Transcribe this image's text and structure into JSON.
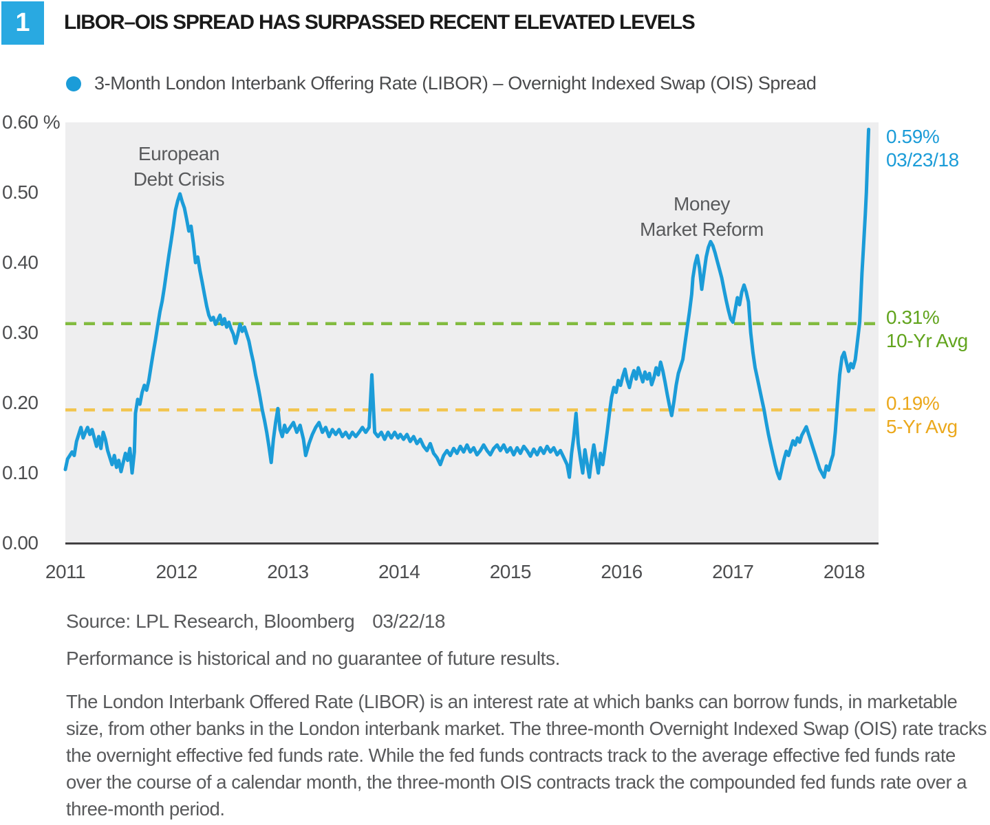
{
  "colors": {
    "blue": "#1B9CD8",
    "green-line": "#82BB3F",
    "green-text": "#61A41D",
    "yellow-line": "#F2C54E",
    "orange-text": "#EBA81C",
    "ink": "#1A1A1A",
    "gray-text": "#58595B",
    "tick-text": "#4D4E50",
    "plot-bg": "#EEEEEF",
    "axis": "#414042"
  },
  "figure": {
    "number": "1",
    "title": "LIBOR–OIS SPREAD HAS SURPASSED RECENT ELEVATED LEVELS"
  },
  "legend": {
    "label": "3-Month London Interbank Offering Rate (LIBOR) – Overnight Indexed Swap (OIS) Spread"
  },
  "chart_data": {
    "type": "line",
    "title": "LIBOR–OIS Spread has surpassed recent elevated levels",
    "series_name": "3-Month LIBOR – OIS Spread",
    "unit": "percent",
    "x_range": [
      2011,
      2018.31
    ],
    "ylim": [
      0,
      0.6
    ],
    "grid": false,
    "y_ticks": [
      {
        "label": "0.60 %",
        "value": 0.6
      },
      {
        "label": "0.50",
        "value": 0.5
      },
      {
        "label": "0.40",
        "value": 0.4
      },
      {
        "label": "0.30",
        "value": 0.3
      },
      {
        "label": "0.20",
        "value": 0.2
      },
      {
        "label": "0.10",
        "value": 0.1
      },
      {
        "label": "0.00",
        "value": 0.0
      }
    ],
    "x_ticks": [
      {
        "label": "2011",
        "value": 2011
      },
      {
        "label": "2012",
        "value": 2012
      },
      {
        "label": "2013",
        "value": 2013
      },
      {
        "label": "2014",
        "value": 2014
      },
      {
        "label": "2015",
        "value": 2015
      },
      {
        "label": "2016",
        "value": 2016
      },
      {
        "label": "2017",
        "value": 2017
      },
      {
        "label": "2018",
        "value": 2018
      }
    ],
    "avg_lines": [
      {
        "value_label": "0.31%",
        "name_label": "10-Yr Avg",
        "value": 0.313,
        "line_color": "#82BB3F",
        "text_color": "#61A41D"
      },
      {
        "value_label": "0.19%",
        "name_label": "5-Yr Avg",
        "value": 0.19,
        "line_color": "#F2C54E",
        "text_color": "#EBA81C"
      }
    ],
    "peak_label": {
      "value": "0.59%",
      "date": "03/23/18"
    },
    "annotations": [
      {
        "line1": "European",
        "line2": "Debt Crisis",
        "x": 2012.02,
        "y": 0.55
      },
      {
        "line1": "Money",
        "line2": "Market Reform",
        "x": 2016.74,
        "y": 0.49
      }
    ],
    "points": [
      [
        2011.0,
        0.105
      ],
      [
        2011.02,
        0.12
      ],
      [
        2011.04,
        0.125
      ],
      [
        2011.06,
        0.13
      ],
      [
        2011.08,
        0.125
      ],
      [
        2011.1,
        0.145
      ],
      [
        2011.12,
        0.155
      ],
      [
        2011.14,
        0.165
      ],
      [
        2011.16,
        0.15
      ],
      [
        2011.18,
        0.158
      ],
      [
        2011.2,
        0.165
      ],
      [
        2011.22,
        0.155
      ],
      [
        2011.24,
        0.162
      ],
      [
        2011.26,
        0.15
      ],
      [
        2011.28,
        0.138
      ],
      [
        2011.3,
        0.152
      ],
      [
        2011.32,
        0.135
      ],
      [
        2011.34,
        0.158
      ],
      [
        2011.36,
        0.148
      ],
      [
        2011.38,
        0.132
      ],
      [
        2011.4,
        0.122
      ],
      [
        2011.42,
        0.112
      ],
      [
        2011.44,
        0.125
      ],
      [
        2011.46,
        0.108
      ],
      [
        2011.48,
        0.118
      ],
      [
        2011.5,
        0.102
      ],
      [
        2011.52,
        0.115
      ],
      [
        2011.54,
        0.128
      ],
      [
        2011.56,
        0.118
      ],
      [
        2011.58,
        0.135
      ],
      [
        2011.6,
        0.1
      ],
      [
        2011.62,
        0.13
      ],
      [
        2011.63,
        0.185
      ],
      [
        2011.65,
        0.205
      ],
      [
        2011.67,
        0.198
      ],
      [
        2011.69,
        0.215
      ],
      [
        2011.71,
        0.225
      ],
      [
        2011.73,
        0.218
      ],
      [
        2011.75,
        0.232
      ],
      [
        2011.77,
        0.252
      ],
      [
        2011.79,
        0.272
      ],
      [
        2011.81,
        0.29
      ],
      [
        2011.83,
        0.31
      ],
      [
        2011.85,
        0.33
      ],
      [
        2011.87,
        0.345
      ],
      [
        2011.89,
        0.365
      ],
      [
        2011.91,
        0.388
      ],
      [
        2011.93,
        0.41
      ],
      [
        2011.95,
        0.43
      ],
      [
        2011.97,
        0.452
      ],
      [
        2011.99,
        0.475
      ],
      [
        2012.01,
        0.488
      ],
      [
        2012.03,
        0.498
      ],
      [
        2012.05,
        0.487
      ],
      [
        2012.07,
        0.478
      ],
      [
        2012.09,
        0.462
      ],
      [
        2012.11,
        0.445
      ],
      [
        2012.13,
        0.452
      ],
      [
        2012.15,
        0.428
      ],
      [
        2012.17,
        0.4
      ],
      [
        2012.19,
        0.408
      ],
      [
        2012.21,
        0.388
      ],
      [
        2012.23,
        0.372
      ],
      [
        2012.25,
        0.355
      ],
      [
        2012.27,
        0.338
      ],
      [
        2012.29,
        0.325
      ],
      [
        2012.31,
        0.318
      ],
      [
        2012.33,
        0.322
      ],
      [
        2012.35,
        0.312
      ],
      [
        2012.37,
        0.318
      ],
      [
        2012.39,
        0.325
      ],
      [
        2012.41,
        0.312
      ],
      [
        2012.43,
        0.32
      ],
      [
        2012.45,
        0.308
      ],
      [
        2012.47,
        0.315
      ],
      [
        2012.49,
        0.305
      ],
      [
        2012.51,
        0.298
      ],
      [
        2012.53,
        0.285
      ],
      [
        2012.55,
        0.298
      ],
      [
        2012.57,
        0.312
      ],
      [
        2012.59,
        0.302
      ],
      [
        2012.61,
        0.308
      ],
      [
        2012.63,
        0.298
      ],
      [
        2012.65,
        0.288
      ],
      [
        2012.67,
        0.272
      ],
      [
        2012.69,
        0.258
      ],
      [
        2012.71,
        0.24
      ],
      [
        2012.73,
        0.225
      ],
      [
        2012.75,
        0.208
      ],
      [
        2012.77,
        0.19
      ],
      [
        2012.79,
        0.175
      ],
      [
        2012.81,
        0.158
      ],
      [
        2012.83,
        0.138
      ],
      [
        2012.85,
        0.115
      ],
      [
        2012.87,
        0.148
      ],
      [
        2012.89,
        0.172
      ],
      [
        2012.91,
        0.192
      ],
      [
        2012.93,
        0.162
      ],
      [
        2012.95,
        0.152
      ],
      [
        2012.97,
        0.168
      ],
      [
        2012.99,
        0.158
      ],
      [
        2013.02,
        0.165
      ],
      [
        2013.05,
        0.172
      ],
      [
        2013.08,
        0.158
      ],
      [
        2013.11,
        0.168
      ],
      [
        2013.14,
        0.148
      ],
      [
        2013.16,
        0.125
      ],
      [
        2013.19,
        0.142
      ],
      [
        2013.22,
        0.155
      ],
      [
        2013.25,
        0.165
      ],
      [
        2013.28,
        0.172
      ],
      [
        2013.31,
        0.158
      ],
      [
        2013.34,
        0.165
      ],
      [
        2013.37,
        0.152
      ],
      [
        2013.4,
        0.162
      ],
      [
        2013.43,
        0.155
      ],
      [
        2013.46,
        0.162
      ],
      [
        2013.49,
        0.152
      ],
      [
        2013.52,
        0.158
      ],
      [
        2013.55,
        0.15
      ],
      [
        2013.58,
        0.158
      ],
      [
        2013.61,
        0.152
      ],
      [
        2013.64,
        0.158
      ],
      [
        2013.67,
        0.165
      ],
      [
        2013.7,
        0.158
      ],
      [
        2013.73,
        0.165
      ],
      [
        2013.755,
        0.24
      ],
      [
        2013.78,
        0.158
      ],
      [
        2013.81,
        0.152
      ],
      [
        2013.84,
        0.158
      ],
      [
        2013.87,
        0.148
      ],
      [
        2013.9,
        0.158
      ],
      [
        2013.93,
        0.15
      ],
      [
        2013.96,
        0.158
      ],
      [
        2013.99,
        0.15
      ],
      [
        2014.01,
        0.155
      ],
      [
        2014.04,
        0.148
      ],
      [
        2014.07,
        0.155
      ],
      [
        2014.1,
        0.145
      ],
      [
        2014.13,
        0.152
      ],
      [
        2014.16,
        0.142
      ],
      [
        2014.19,
        0.148
      ],
      [
        2014.22,
        0.138
      ],
      [
        2014.25,
        0.132
      ],
      [
        2014.28,
        0.142
      ],
      [
        2014.31,
        0.128
      ],
      [
        2014.34,
        0.122
      ],
      [
        2014.37,
        0.112
      ],
      [
        2014.4,
        0.125
      ],
      [
        2014.43,
        0.132
      ],
      [
        2014.46,
        0.125
      ],
      [
        2014.49,
        0.135
      ],
      [
        2014.52,
        0.128
      ],
      [
        2014.55,
        0.138
      ],
      [
        2014.58,
        0.13
      ],
      [
        2014.61,
        0.14
      ],
      [
        2014.64,
        0.13
      ],
      [
        2014.67,
        0.136
      ],
      [
        2014.7,
        0.126
      ],
      [
        2014.73,
        0.132
      ],
      [
        2014.76,
        0.14
      ],
      [
        2014.79,
        0.132
      ],
      [
        2014.82,
        0.126
      ],
      [
        2014.85,
        0.135
      ],
      [
        2014.88,
        0.14
      ],
      [
        2014.91,
        0.132
      ],
      [
        2014.94,
        0.14
      ],
      [
        2014.97,
        0.13
      ],
      [
        2015.0,
        0.136
      ],
      [
        2015.03,
        0.126
      ],
      [
        2015.06,
        0.136
      ],
      [
        2015.09,
        0.128
      ],
      [
        2015.12,
        0.138
      ],
      [
        2015.15,
        0.132
      ],
      [
        2015.18,
        0.124
      ],
      [
        2015.21,
        0.134
      ],
      [
        2015.24,
        0.126
      ],
      [
        2015.27,
        0.136
      ],
      [
        2015.3,
        0.128
      ],
      [
        2015.33,
        0.138
      ],
      [
        2015.36,
        0.13
      ],
      [
        2015.39,
        0.136
      ],
      [
        2015.42,
        0.126
      ],
      [
        2015.45,
        0.132
      ],
      [
        2015.48,
        0.122
      ],
      [
        2015.51,
        0.112
      ],
      [
        2015.53,
        0.094
      ],
      [
        2015.55,
        0.128
      ],
      [
        2015.57,
        0.152
      ],
      [
        2015.59,
        0.185
      ],
      [
        2015.61,
        0.142
      ],
      [
        2015.63,
        0.12
      ],
      [
        2015.65,
        0.1
      ],
      [
        2015.67,
        0.133
      ],
      [
        2015.69,
        0.114
      ],
      [
        2015.71,
        0.094
      ],
      [
        2015.73,
        0.12
      ],
      [
        2015.75,
        0.14
      ],
      [
        2015.77,
        0.12
      ],
      [
        2015.79,
        0.1
      ],
      [
        2015.81,
        0.128
      ],
      [
        2015.83,
        0.112
      ],
      [
        2015.85,
        0.134
      ],
      [
        2015.87,
        0.158
      ],
      [
        2015.89,
        0.185
      ],
      [
        2015.91,
        0.208
      ],
      [
        2015.93,
        0.222
      ],
      [
        2015.95,
        0.215
      ],
      [
        2015.97,
        0.232
      ],
      [
        2015.99,
        0.225
      ],
      [
        2016.01,
        0.238
      ],
      [
        2016.03,
        0.248
      ],
      [
        2016.05,
        0.232
      ],
      [
        2016.07,
        0.222
      ],
      [
        2016.09,
        0.236
      ],
      [
        2016.11,
        0.246
      ],
      [
        2016.13,
        0.234
      ],
      [
        2016.15,
        0.25
      ],
      [
        2016.17,
        0.24
      ],
      [
        2016.19,
        0.23
      ],
      [
        2016.21,
        0.244
      ],
      [
        2016.23,
        0.234
      ],
      [
        2016.25,
        0.242
      ],
      [
        2016.27,
        0.226
      ],
      [
        2016.29,
        0.236
      ],
      [
        2016.31,
        0.25
      ],
      [
        2016.33,
        0.24
      ],
      [
        2016.35,
        0.258
      ],
      [
        2016.37,
        0.246
      ],
      [
        2016.39,
        0.23
      ],
      [
        2016.41,
        0.212
      ],
      [
        2016.43,
        0.196
      ],
      [
        2016.45,
        0.182
      ],
      [
        2016.47,
        0.202
      ],
      [
        2016.49,
        0.225
      ],
      [
        2016.51,
        0.242
      ],
      [
        2016.53,
        0.252
      ],
      [
        2016.55,
        0.262
      ],
      [
        2016.57,
        0.285
      ],
      [
        2016.59,
        0.308
      ],
      [
        2016.61,
        0.33
      ],
      [
        2016.63,
        0.355
      ],
      [
        2016.64,
        0.378
      ],
      [
        2016.66,
        0.398
      ],
      [
        2016.68,
        0.41
      ],
      [
        2016.7,
        0.392
      ],
      [
        2016.72,
        0.362
      ],
      [
        2016.74,
        0.385
      ],
      [
        2016.76,
        0.408
      ],
      [
        2016.78,
        0.422
      ],
      [
        2016.8,
        0.43
      ],
      [
        2016.82,
        0.424
      ],
      [
        2016.84,
        0.414
      ],
      [
        2016.86,
        0.402
      ],
      [
        2016.88,
        0.39
      ],
      [
        2016.9,
        0.378
      ],
      [
        2016.92,
        0.362
      ],
      [
        2016.94,
        0.346
      ],
      [
        2016.96,
        0.332
      ],
      [
        2016.98,
        0.32
      ],
      [
        2017.0,
        0.315
      ],
      [
        2017.02,
        0.332
      ],
      [
        2017.04,
        0.35
      ],
      [
        2017.06,
        0.34
      ],
      [
        2017.08,
        0.358
      ],
      [
        2017.1,
        0.368
      ],
      [
        2017.12,
        0.358
      ],
      [
        2017.14,
        0.344
      ],
      [
        2017.16,
        0.3
      ],
      [
        2017.18,
        0.272
      ],
      [
        2017.2,
        0.25
      ],
      [
        2017.22,
        0.235
      ],
      [
        2017.24,
        0.22
      ],
      [
        2017.26,
        0.205
      ],
      [
        2017.28,
        0.19
      ],
      [
        2017.3,
        0.172
      ],
      [
        2017.32,
        0.155
      ],
      [
        2017.34,
        0.14
      ],
      [
        2017.36,
        0.126
      ],
      [
        2017.38,
        0.112
      ],
      [
        2017.4,
        0.1
      ],
      [
        2017.42,
        0.092
      ],
      [
        2017.44,
        0.106
      ],
      [
        2017.46,
        0.12
      ],
      [
        2017.48,
        0.131
      ],
      [
        2017.5,
        0.125
      ],
      [
        2017.52,
        0.136
      ],
      [
        2017.54,
        0.146
      ],
      [
        2017.56,
        0.14
      ],
      [
        2017.58,
        0.15
      ],
      [
        2017.6,
        0.144
      ],
      [
        2017.62,
        0.154
      ],
      [
        2017.64,
        0.16
      ],
      [
        2017.66,
        0.166
      ],
      [
        2017.68,
        0.156
      ],
      [
        2017.7,
        0.146
      ],
      [
        2017.72,
        0.136
      ],
      [
        2017.74,
        0.126
      ],
      [
        2017.76,
        0.116
      ],
      [
        2017.78,
        0.106
      ],
      [
        2017.8,
        0.1
      ],
      [
        2017.82,
        0.094
      ],
      [
        2017.84,
        0.11
      ],
      [
        2017.86,
        0.104
      ],
      [
        2017.88,
        0.116
      ],
      [
        2017.9,
        0.126
      ],
      [
        2017.92,
        0.158
      ],
      [
        2017.94,
        0.2
      ],
      [
        2017.96,
        0.24
      ],
      [
        2017.98,
        0.265
      ],
      [
        2018.0,
        0.272
      ],
      [
        2018.02,
        0.258
      ],
      [
        2018.04,
        0.245
      ],
      [
        2018.06,
        0.256
      ],
      [
        2018.08,
        0.25
      ],
      [
        2018.1,
        0.262
      ],
      [
        2018.12,
        0.288
      ],
      [
        2018.14,
        0.315
      ],
      [
        2018.15,
        0.35
      ],
      [
        2018.16,
        0.385
      ],
      [
        2018.17,
        0.412
      ],
      [
        2018.18,
        0.44
      ],
      [
        2018.19,
        0.468
      ],
      [
        2018.2,
        0.5
      ],
      [
        2018.21,
        0.548
      ],
      [
        2018.22,
        0.59
      ]
    ]
  },
  "footer": {
    "source": "Source: LPL Research, Bloomberg",
    "source_date": "03/22/18",
    "disclaimer": "Performance is historical and no guarantee of future results.",
    "definition": "The London Interbank Offered Rate (LIBOR) is an interest rate at which banks can borrow funds, in marketable size, from other banks in the London interbank market. The three-month Overnight Indexed Swap (OIS) rate tracks the overnight effective fed funds rate. While the fed funds contracts track to the average effective fed funds rate over the course of a calendar month, the three-month OIS contracts track the compounded fed funds rate over a three-month period."
  }
}
